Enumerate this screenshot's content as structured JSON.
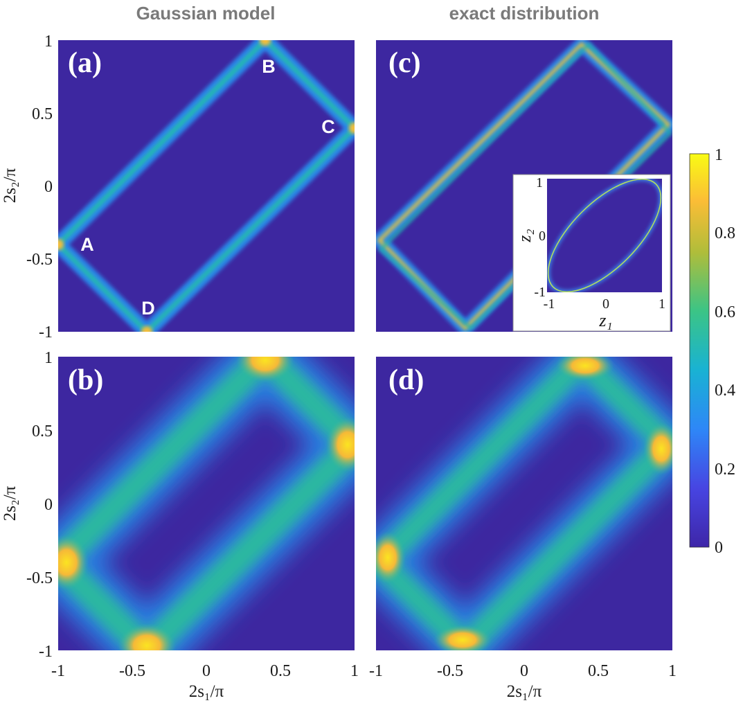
{
  "titles": {
    "left": "Gaussian model",
    "right": "exact distribution"
  },
  "axes": {
    "ylabel": "2s₂/π",
    "xlabel": "2s₁/π",
    "yticks_top": [
      "1",
      "0.5",
      "0",
      "-0.5",
      "-1"
    ],
    "yticks_bottom": [
      "1",
      "0.5",
      "0",
      "-0.5",
      "-1"
    ],
    "xticks": [
      "-1",
      "-0.5",
      "0",
      "0.5",
      "1"
    ],
    "range": [
      -1,
      1
    ]
  },
  "panels": {
    "a": "(a)",
    "b": "(b)",
    "c": "(c)",
    "d": "(d)"
  },
  "annotations": {
    "A": "A",
    "B": "B",
    "C": "C",
    "D": "D"
  },
  "inset": {
    "xlabel": "z₁",
    "ylabel": "z₂",
    "xticks": [
      "-1",
      "0",
      "1"
    ],
    "yticks": [
      "1",
      "0",
      "-1"
    ]
  },
  "colorbar": {
    "ticks": [
      "1",
      "0.8",
      "0.6",
      "0.4",
      "0.2",
      "0"
    ],
    "range": [
      0,
      1
    ],
    "colormap": "parula"
  },
  "colors": {
    "background_low": "#3d27a0",
    "mid": "#22b19b",
    "high": "#f8e71c",
    "peak": "#fbbf32"
  },
  "chart_data": {
    "type": "heatmap",
    "description_panels": [
      "(a) Gaussian model, narrow",
      "(b) Gaussian model, broad",
      "(c) exact distribution, narrow",
      "(d) exact distribution, broad"
    ],
    "rectangle_vertices": {
      "A": [
        -1,
        -0.4
      ],
      "B": [
        0.4,
        1
      ],
      "C": [
        1,
        0.4
      ],
      "D": [
        -0.4,
        -1
      ]
    },
    "xlim": [
      -1,
      1
    ],
    "ylim": [
      -1,
      1
    ],
    "clim": [
      0,
      1
    ]
  }
}
